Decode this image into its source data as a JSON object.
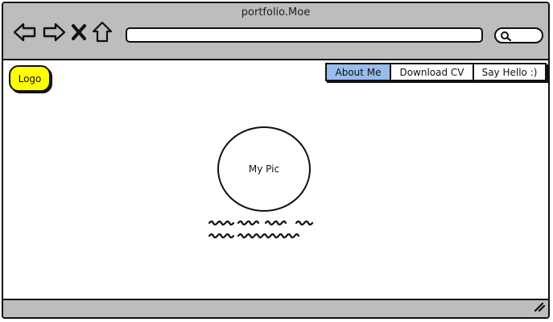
{
  "window": {
    "title": "portfolio.Moe"
  },
  "toolbar": {
    "icons": [
      "back-arrow-icon",
      "forward-arrow-icon",
      "close-x-icon",
      "home-icon"
    ],
    "address_value": "",
    "search_icon": "search-icon"
  },
  "header": {
    "logo_label": "Logo",
    "logo_color": "#ffff00",
    "menu": [
      {
        "label": "About Me",
        "active": true
      },
      {
        "label": "Download CV",
        "active": false
      },
      {
        "label": "Say Hello :)",
        "active": false
      }
    ],
    "active_color": "#99bbee"
  },
  "main": {
    "profile_pic_label": "My Pic"
  },
  "status": {
    "resize_icon": "resize-grip-icon"
  }
}
